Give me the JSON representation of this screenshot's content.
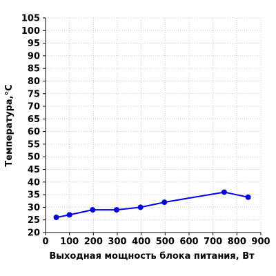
{
  "chart_data": {
    "type": "line",
    "title": "",
    "xlabel": "Выходная мощность блока питания, Вт",
    "ylabel": "Температура,°С",
    "xlim": [
      0,
      900
    ],
    "ylim": [
      20,
      105
    ],
    "x_ticks": [
      "0",
      "100",
      "200",
      "300",
      "400",
      "500",
      "600",
      "700",
      "800",
      "900"
    ],
    "y_ticks": [
      "20",
      "25",
      "30",
      "35",
      "40",
      "45",
      "50",
      "55",
      "60",
      "65",
      "70",
      "75",
      "80",
      "85",
      "90",
      "95",
      "100",
      "105"
    ],
    "grid": true,
    "series": [
      {
        "x": [
          45,
          100,
          197,
          297,
          397,
          497,
          747,
          847
        ],
        "y": [
          26,
          27,
          29,
          29,
          30,
          32,
          36,
          34
        ],
        "color": "#0000ee"
      }
    ]
  }
}
